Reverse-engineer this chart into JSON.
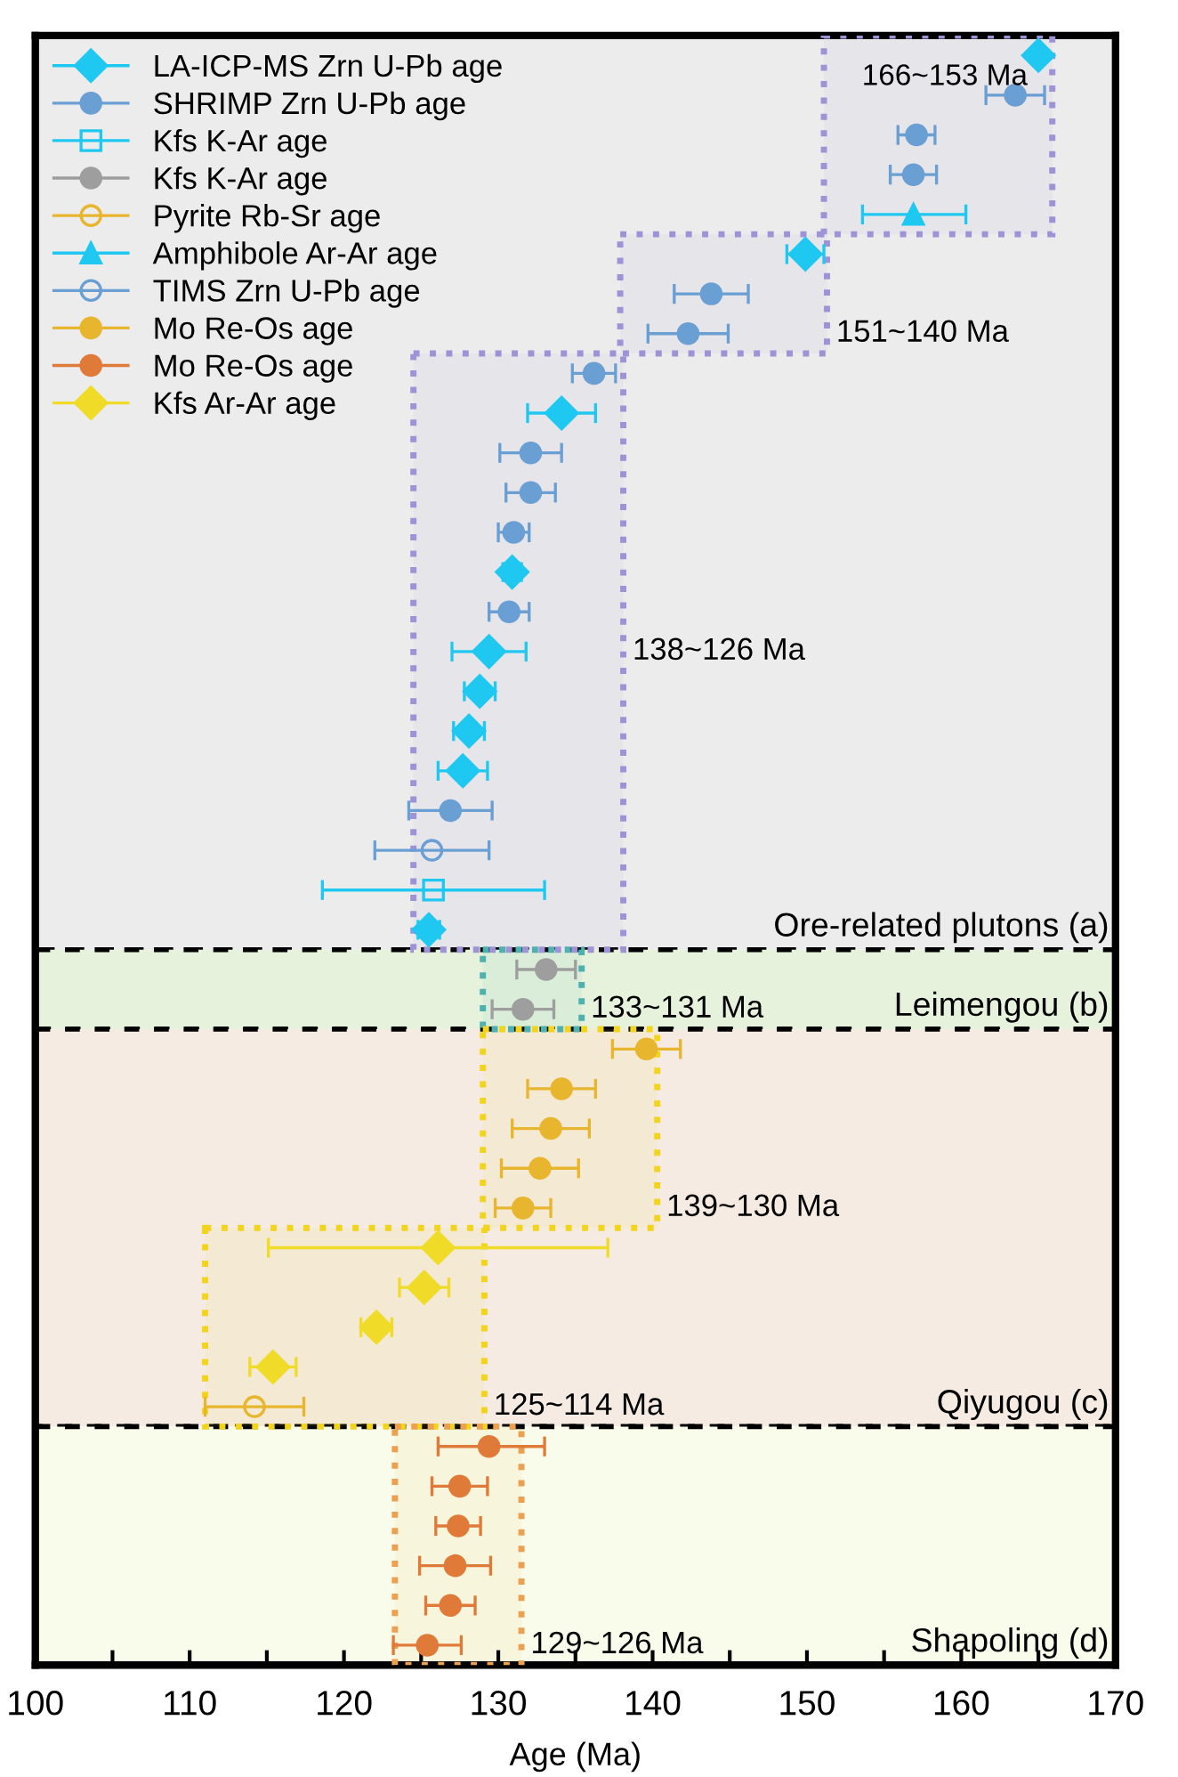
{
  "chart_data": {
    "type": "scatter",
    "orientation": "horizontal",
    "categories": [
      null,
      null,
      null,
      null,
      null,
      null,
      null,
      null,
      null,
      null,
      null,
      null,
      null,
      null,
      null,
      null,
      null,
      null,
      null,
      null,
      null,
      null,
      null,
      null,
      null,
      null,
      null,
      null,
      null,
      null,
      null,
      null,
      null,
      null,
      null,
      null,
      null,
      null,
      null,
      null,
      null
    ],
    "xlabel": "Age (Ma)",
    "xlim": [
      100,
      170
    ],
    "xticks": [
      100,
      {
        "value": 105,
        "label": null
      },
      110,
      {
        "value": 115,
        "label": null
      },
      120,
      {
        "value": 125,
        "label": null
      },
      130,
      {
        "value": 135,
        "label": null
      },
      140,
      {
        "value": 145,
        "label": null
      },
      150,
      {
        "value": 155,
        "label": null
      },
      160,
      {
        "value": 165,
        "label": null
      },
      170
    ],
    "legend": "top left",
    "grid": false,
    "series": [
      {
        "name": "LA-ICP-MS Zrn U-Pb age",
        "color": "#1ec8f0",
        "marker": "diamond",
        "values": [
          165.0,
          null,
          null,
          null,
          null,
          149.9,
          null,
          null,
          null,
          134.1,
          null,
          null,
          null,
          130.9,
          null,
          129.4,
          128.8,
          128.1,
          127.7,
          null,
          null,
          null,
          125.5,
          null,
          null,
          null,
          null,
          null,
          null,
          null,
          null,
          null,
          null,
          null,
          null,
          null,
          null,
          null,
          null,
          null,
          null
        ],
        "errors": [
          0.3,
          null,
          null,
          null,
          null,
          1.2,
          null,
          null,
          null,
          2.2,
          null,
          null,
          null,
          0.6,
          null,
          2.4,
          1.0,
          1.0,
          1.6,
          null,
          null,
          null,
          0.7,
          null,
          null,
          null,
          null,
          null,
          null,
          null,
          null,
          null,
          null,
          null,
          null,
          null,
          null,
          null,
          null,
          null,
          null
        ]
      },
      {
        "name": "SHRIMP Zrn U-Pb age",
        "color": "#6a9fd4",
        "marker": "circle",
        "values": [
          null,
          163.5,
          157.1,
          156.9,
          null,
          null,
          143.8,
          142.3,
          136.2,
          null,
          132.1,
          132.1,
          131.0,
          null,
          130.7,
          null,
          null,
          null,
          null,
          126.9,
          null,
          null,
          null,
          null,
          null,
          null,
          null,
          null,
          null,
          null,
          null,
          null,
          null,
          null,
          null,
          null,
          null,
          null,
          null,
          null,
          null
        ],
        "errors": [
          null,
          1.9,
          1.2,
          1.5,
          null,
          null,
          2.4,
          2.6,
          1.4,
          null,
          2.0,
          1.6,
          1.0,
          null,
          1.3,
          null,
          null,
          null,
          null,
          2.7,
          null,
          null,
          null,
          null,
          null,
          null,
          null,
          null,
          null,
          null,
          null,
          null,
          null,
          null,
          null,
          null,
          null,
          null,
          null,
          null,
          null
        ]
      },
      {
        "name": "Kfs K-Ar age",
        "color": "#1ec8f0",
        "marker": "square-open",
        "values": [
          null,
          null,
          null,
          null,
          null,
          null,
          null,
          null,
          null,
          null,
          null,
          null,
          null,
          null,
          null,
          null,
          null,
          null,
          null,
          null,
          null,
          125.8,
          null,
          null,
          null,
          null,
          null,
          null,
          null,
          null,
          null,
          null,
          null,
          null,
          null,
          null,
          null,
          null,
          null,
          null,
          null
        ],
        "errors": [
          null,
          null,
          null,
          null,
          null,
          null,
          null,
          null,
          null,
          null,
          null,
          null,
          null,
          null,
          null,
          null,
          null,
          null,
          null,
          null,
          null,
          7.2,
          null,
          null,
          null,
          null,
          null,
          null,
          null,
          null,
          null,
          null,
          null,
          null,
          null,
          null,
          null,
          null,
          null,
          null,
          null
        ]
      },
      {
        "name": "Kfs K-Ar age",
        "color": "#9e9e9e",
        "marker": "circle",
        "values": [
          null,
          null,
          null,
          null,
          null,
          null,
          null,
          null,
          null,
          null,
          null,
          null,
          null,
          null,
          null,
          null,
          null,
          null,
          null,
          null,
          null,
          null,
          null,
          133.1,
          131.6,
          null,
          null,
          null,
          null,
          null,
          null,
          null,
          null,
          null,
          null,
          null,
          null,
          null,
          null,
          null,
          null
        ],
        "errors": [
          null,
          null,
          null,
          null,
          null,
          null,
          null,
          null,
          null,
          null,
          null,
          null,
          null,
          null,
          null,
          null,
          null,
          null,
          null,
          null,
          null,
          null,
          null,
          1.9,
          2.0,
          null,
          null,
          null,
          null,
          null,
          null,
          null,
          null,
          null,
          null,
          null,
          null,
          null,
          null,
          null,
          null
        ]
      },
      {
        "name": "Pyrite Rb-Sr age",
        "color": "#e8b52e",
        "marker": "circle-open",
        "values": [
          null,
          null,
          null,
          null,
          null,
          null,
          null,
          null,
          null,
          null,
          null,
          null,
          null,
          null,
          null,
          null,
          null,
          null,
          null,
          null,
          null,
          null,
          null,
          null,
          null,
          null,
          null,
          null,
          null,
          null,
          null,
          null,
          null,
          null,
          114.2,
          null,
          null,
          null,
          null,
          null,
          null
        ],
        "errors": [
          null,
          null,
          null,
          null,
          null,
          null,
          null,
          null,
          null,
          null,
          null,
          null,
          null,
          null,
          null,
          null,
          null,
          null,
          null,
          null,
          null,
          null,
          null,
          null,
          null,
          null,
          null,
          null,
          null,
          null,
          null,
          null,
          null,
          null,
          3.2,
          null,
          null,
          null,
          null,
          null,
          null
        ]
      },
      {
        "name": "Amphibole Ar-Ar age",
        "color": "#1ec8f0",
        "marker": "triangle",
        "values": [
          null,
          null,
          null,
          null,
          156.9,
          null,
          null,
          null,
          null,
          null,
          null,
          null,
          null,
          null,
          null,
          null,
          null,
          null,
          null,
          null,
          null,
          null,
          null,
          null,
          null,
          null,
          null,
          null,
          null,
          null,
          null,
          null,
          null,
          null,
          null,
          null,
          null,
          null,
          null,
          null,
          null
        ],
        "errors": [
          null,
          null,
          null,
          null,
          [
            153.6,
            160.3
          ],
          null,
          null,
          null,
          null,
          null,
          null,
          null,
          null,
          null,
          null,
          null,
          null,
          null,
          null,
          null,
          null,
          null,
          null,
          null,
          null,
          null,
          null,
          null,
          null,
          null,
          null,
          null,
          null,
          null,
          null,
          null,
          null,
          null,
          null,
          null,
          null
        ]
      },
      {
        "name": "TIMS Zrn U-Pb age",
        "color": "#6a9fd4",
        "marker": "circle-open",
        "values": [
          null,
          null,
          null,
          null,
          null,
          null,
          null,
          null,
          null,
          null,
          null,
          null,
          null,
          null,
          null,
          null,
          null,
          null,
          null,
          null,
          125.7,
          null,
          null,
          null,
          null,
          null,
          null,
          null,
          null,
          null,
          null,
          null,
          null,
          null,
          null,
          null,
          null,
          null,
          null,
          null,
          null
        ],
        "errors": [
          null,
          null,
          null,
          null,
          null,
          null,
          null,
          null,
          null,
          null,
          null,
          null,
          null,
          null,
          null,
          null,
          null,
          null,
          null,
          null,
          3.7,
          null,
          null,
          null,
          null,
          null,
          null,
          null,
          null,
          null,
          null,
          null,
          null,
          null,
          null,
          null,
          null,
          null,
          null,
          null,
          null
        ]
      },
      {
        "name": "Mo Re-Os age",
        "color": "#e8b52e",
        "marker": "circle",
        "values": [
          null,
          null,
          null,
          null,
          null,
          null,
          null,
          null,
          null,
          null,
          null,
          null,
          null,
          null,
          null,
          null,
          null,
          null,
          null,
          null,
          null,
          null,
          null,
          null,
          null,
          139.6,
          134.1,
          133.4,
          132.7,
          131.6,
          null,
          null,
          null,
          null,
          null,
          null,
          null,
          null,
          null,
          null,
          null
        ],
        "errors": [
          null,
          null,
          null,
          null,
          null,
          null,
          null,
          null,
          null,
          null,
          null,
          null,
          null,
          null,
          null,
          null,
          null,
          null,
          null,
          null,
          null,
          null,
          null,
          null,
          null,
          2.2,
          2.2,
          2.5,
          2.5,
          1.8,
          null,
          null,
          null,
          null,
          null,
          null,
          null,
          null,
          null,
          null,
          null
        ]
      },
      {
        "name": "Mo Re-Os age",
        "color": "#e07a38",
        "marker": "circle",
        "values": [
          null,
          null,
          null,
          null,
          null,
          null,
          null,
          null,
          null,
          null,
          null,
          null,
          null,
          null,
          null,
          null,
          null,
          null,
          null,
          null,
          null,
          null,
          null,
          null,
          null,
          null,
          null,
          null,
          null,
          null,
          null,
          null,
          null,
          null,
          null,
          129.4,
          127.5,
          127.4,
          127.2,
          126.9,
          125.4
        ],
        "errors": [
          null,
          null,
          null,
          null,
          null,
          null,
          null,
          null,
          null,
          null,
          null,
          null,
          null,
          null,
          null,
          null,
          null,
          null,
          null,
          null,
          null,
          null,
          null,
          null,
          null,
          null,
          null,
          null,
          null,
          null,
          null,
          null,
          null,
          null,
          null,
          [
            126.1,
            133.0
          ],
          1.8,
          1.45,
          2.3,
          1.6,
          2.2
        ]
      },
      {
        "name": "Kfs Ar-Ar age",
        "color": "#f0dc28",
        "marker": "diamond",
        "values": [
          null,
          null,
          null,
          null,
          null,
          null,
          null,
          null,
          null,
          null,
          null,
          null,
          null,
          null,
          null,
          null,
          null,
          null,
          null,
          null,
          null,
          null,
          null,
          null,
          null,
          null,
          null,
          null,
          null,
          null,
          126.1,
          125.2,
          122.1,
          115.4,
          null,
          null,
          null,
          null,
          null,
          null,
          null
        ],
        "errors": [
          null,
          null,
          null,
          null,
          null,
          null,
          null,
          null,
          null,
          null,
          null,
          null,
          null,
          null,
          null,
          null,
          null,
          null,
          null,
          null,
          null,
          null,
          null,
          null,
          null,
          null,
          null,
          null,
          null,
          null,
          11.0,
          1.6,
          1.0,
          1.5,
          null,
          null,
          null,
          null,
          null,
          null,
          null
        ]
      }
    ],
    "bands": [
      {
        "axis": "x",
        "from": 151.1,
        "to": 165.9,
        "label": "166~153 Ma",
        "color": "#9d93d6"
      },
      {
        "axis": "x",
        "from": 137.9,
        "to": 151.3,
        "label": "151~140 Ma",
        "color": "#9d93d6"
      },
      {
        "axis": "x",
        "from": 124.5,
        "to": 138.1,
        "label": "138~126 Ma",
        "color": "#9d93d6"
      },
      {
        "axis": "x",
        "from": 129.0,
        "to": 135.4,
        "label": "133~131 Ma",
        "color": "#4fb0b0"
      },
      {
        "axis": "x",
        "from": 129.0,
        "to": 140.3,
        "label": "139~130 Ma",
        "color": "#f2d41c"
      },
      {
        "axis": "x",
        "from": 111.0,
        "to": 129.1,
        "label": "125~114 Ma",
        "color": "#f2d41c"
      },
      {
        "axis": "x",
        "from": 123.3,
        "to": 131.5,
        "label": "129~126 Ma",
        "color": "#eda050"
      }
    ],
    "annotations": [
      "Ore-related plutons (a)",
      "Leimengou (b)",
      "Qiyugou (c)",
      "Shapoling (d)"
    ]
  }
}
